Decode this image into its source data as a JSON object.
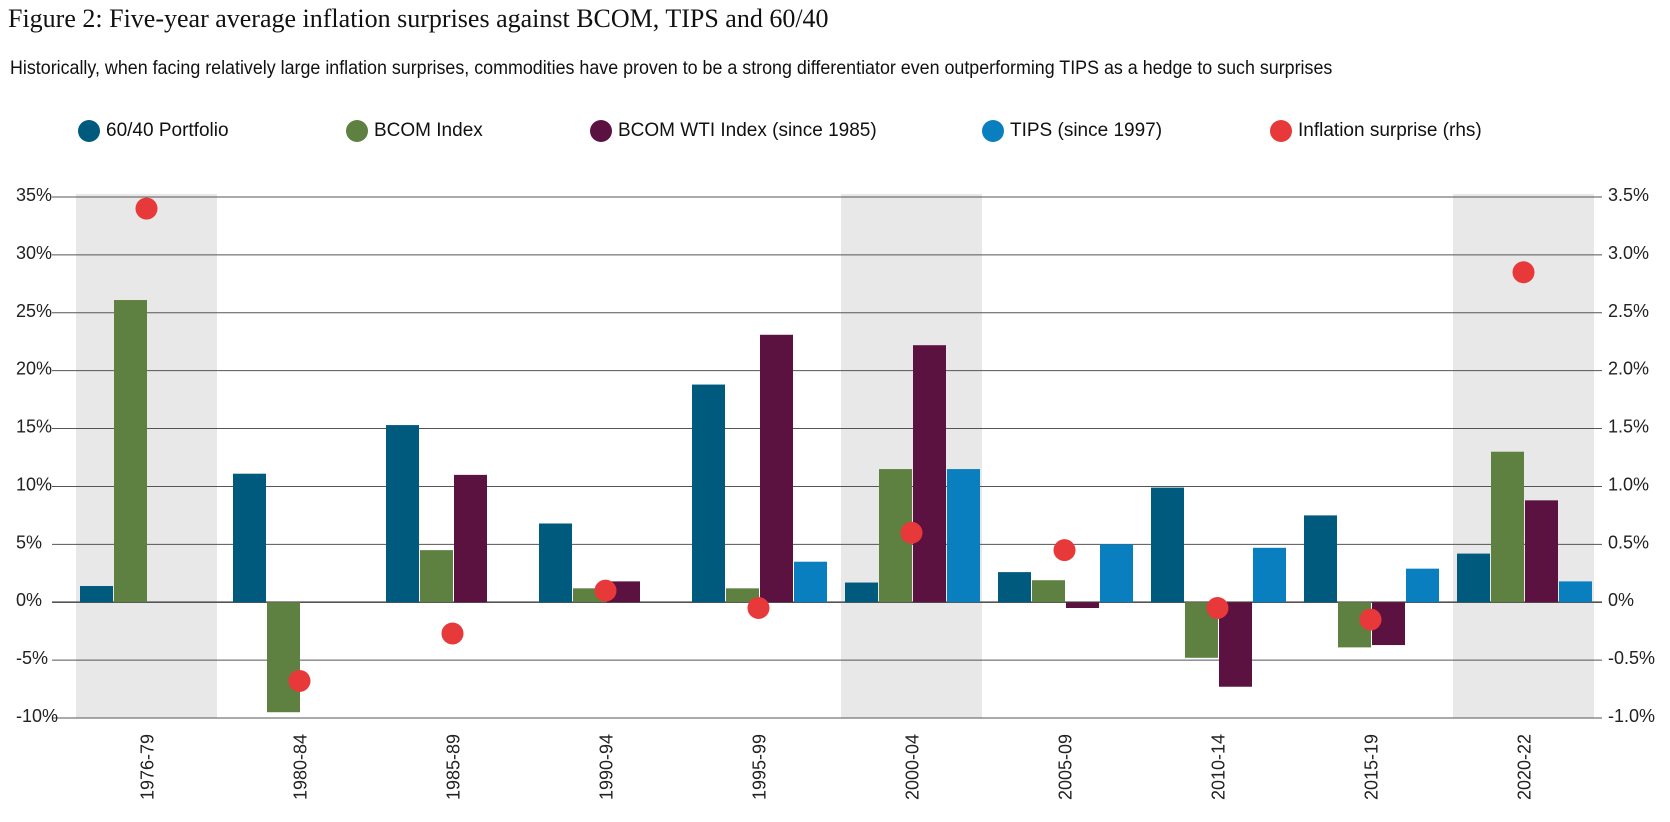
{
  "title": "Figure 2: Five-year average inflation surprises against BCOM, TIPS and 60/40",
  "subtitle": "Historically, when facing relatively large inflation surprises, commodities have proven to be a strong differentiator even outperforming TIPS as a hedge to such surprises",
  "colors": {
    "sixty_forty": "#005a7e",
    "bcom": "#5e8040",
    "bcom_wti": "#5c1240",
    "tips": "#0a7fbf",
    "inflation": "#e8393a",
    "shade": "#e8e8e8",
    "grid": "#555555"
  },
  "chart_data": {
    "type": "bar",
    "categories": [
      "1976-79",
      "1980-84",
      "1985-89",
      "1990-94",
      "1995-99",
      "2000-04",
      "2005-09",
      "2010-14",
      "2015-19",
      "2020-22"
    ],
    "series": [
      {
        "name": "60/40 Portfolio",
        "axis": "left",
        "values": [
          1.4,
          11.1,
          15.3,
          6.8,
          18.8,
          1.7,
          2.6,
          9.9,
          7.5,
          4.2
        ]
      },
      {
        "name": "BCOM Index",
        "axis": "left",
        "values": [
          26.1,
          -9.5,
          4.5,
          1.2,
          1.2,
          11.5,
          1.9,
          -4.8,
          -3.9,
          13.0
        ]
      },
      {
        "name": "BCOM WTI Index (since 1985)",
        "axis": "left",
        "values": [
          null,
          null,
          11.0,
          1.8,
          23.1,
          22.2,
          -0.5,
          -7.3,
          -3.7,
          8.8
        ]
      },
      {
        "name": "TIPS (since 1997)",
        "axis": "left",
        "values": [
          null,
          null,
          null,
          null,
          3.5,
          11.5,
          5.0,
          4.7,
          2.9,
          1.8
        ]
      },
      {
        "name": "Inflation surprise (rhs)",
        "axis": "right",
        "type": "scatter",
        "values": [
          3.4,
          -0.68,
          -0.27,
          0.1,
          -0.05,
          0.6,
          0.45,
          -0.05,
          -0.15,
          2.85
        ]
      }
    ],
    "yleft": {
      "min": -10,
      "max": 35,
      "step": 5,
      "tick_labels": [
        "-10%",
        "-5%",
        "0%",
        "5%",
        "10%",
        "15%",
        "20%",
        "25%",
        "30%",
        "35%"
      ]
    },
    "yright": {
      "min": -1.0,
      "max": 3.5,
      "step": 0.5,
      "tick_labels": [
        "-1.0%",
        "-0.5%",
        "0%",
        "0.5%",
        "1.0%",
        "1.5%",
        "2.0%",
        "2.5%",
        "3.0%",
        "3.5%"
      ]
    },
    "shaded_periods": [
      "1976-79",
      "2000-04",
      "2020-22"
    ],
    "grid": true,
    "legend_position": "top"
  }
}
